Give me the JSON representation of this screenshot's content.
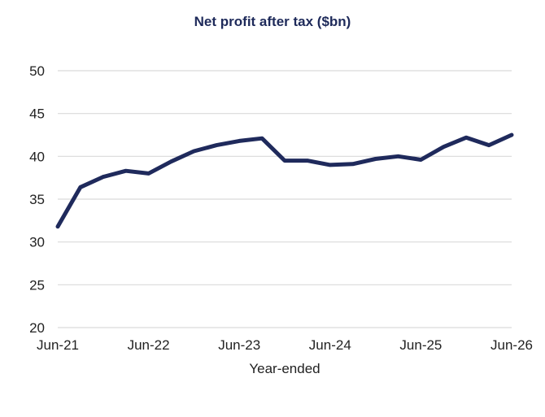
{
  "chart_data": {
    "type": "line",
    "title": "Net profit after tax ($bn)",
    "xlabel": "Year-ended",
    "ylabel": "",
    "ylim": [
      20,
      50
    ],
    "yticks": [
      20,
      25,
      30,
      35,
      40,
      45,
      50
    ],
    "xticks": [
      "Jun-21",
      "Jun-22",
      "Jun-23",
      "Jun-24",
      "Jun-25",
      "Jun-26"
    ],
    "grid": true,
    "legend": "none",
    "colors": {
      "line": "#1f2a5c",
      "grid": "#d9d9d9"
    },
    "series": [
      {
        "x": [
          "Jun-21",
          "Sep-21",
          "Dec-21",
          "Mar-22",
          "Jun-22",
          "Sep-22",
          "Dec-22",
          "Mar-23",
          "Jun-23",
          "Sep-23",
          "Dec-23",
          "Mar-24",
          "Jun-24",
          "Sep-24",
          "Dec-24",
          "Mar-25",
          "Jun-25",
          "Sep-25",
          "Dec-25",
          "Mar-26",
          "Jun-26"
        ],
        "values": [
          31.8,
          36.4,
          37.6,
          38.3,
          38.0,
          39.4,
          40.6,
          41.3,
          41.8,
          42.1,
          39.5,
          39.5,
          39.0,
          39.1,
          39.7,
          40.0,
          39.6,
          41.1,
          42.2,
          41.3,
          42.5
        ]
      }
    ]
  }
}
